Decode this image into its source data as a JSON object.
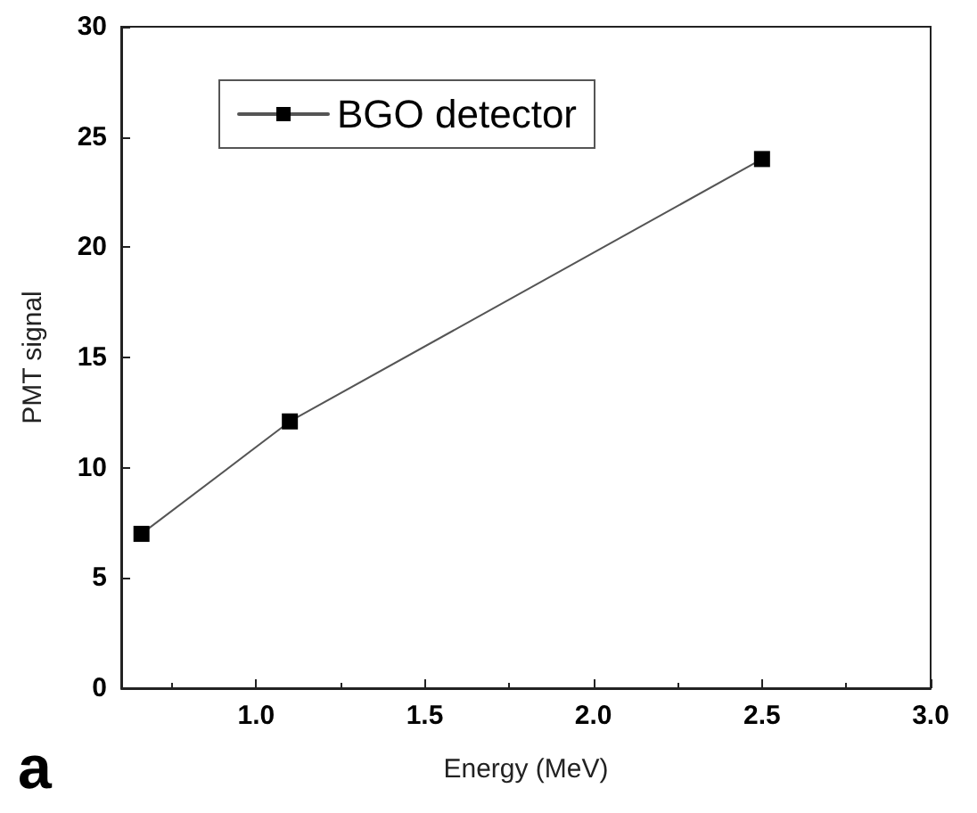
{
  "chart_data": {
    "type": "line",
    "xlabel": "Energy (MeV)",
    "ylabel": "PMT signal",
    "annotations": [
      "a"
    ],
    "x": [
      0.66,
      1.1,
      2.5
    ],
    "series": [
      {
        "name": "BGO detector",
        "color": "#000000",
        "values": [
          7,
          12.1,
          24.0
        ]
      }
    ],
    "xlim": [
      0.6,
      3.0
    ],
    "xticks": [
      {
        "value": 1,
        "label": "1.0"
      },
      1.5,
      {
        "value": 2,
        "label": "2.0"
      },
      2.5,
      {
        "value": 3,
        "label": "3.0"
      }
    ],
    "ylim": [
      0,
      30
    ],
    "yticks": [
      0,
      5,
      10,
      15,
      20,
      25,
      30
    ],
    "grid": false,
    "legend": "top left",
    "marker": "square",
    "line_style": "solid"
  }
}
